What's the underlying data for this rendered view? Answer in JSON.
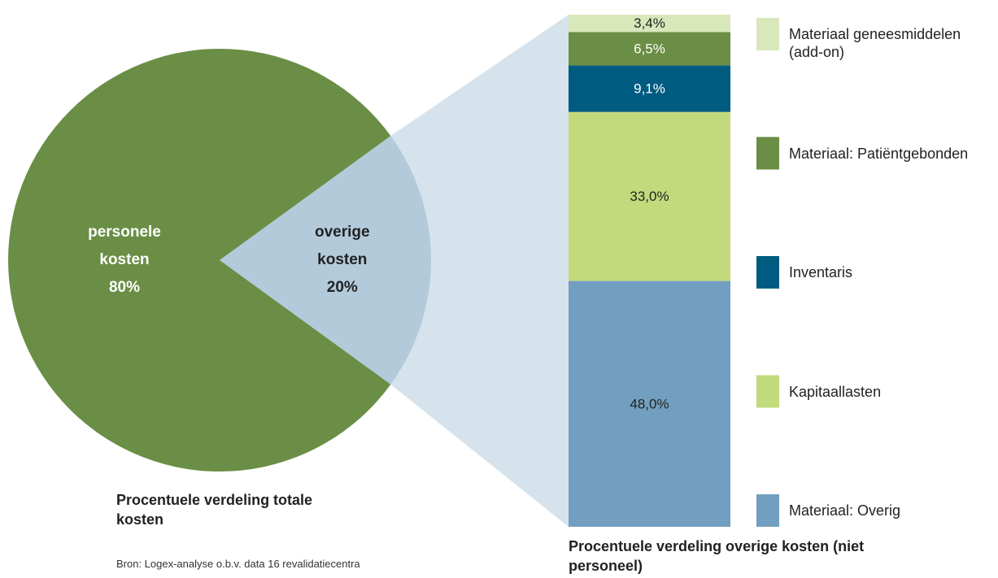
{
  "chart_data": [
    {
      "type": "pie",
      "title": "Procentuele verdeling totale kosten",
      "categories": [
        "personele kosten",
        "overige kosten"
      ],
      "values": [
        80,
        20
      ],
      "value_labels": [
        "80%",
        "20%"
      ],
      "colors": [
        "#6a8e45",
        "#b3cadb"
      ],
      "label_colors": [
        "#ffffff",
        "#222222"
      ],
      "note": "Bron: Logex-analyse o.b.v. data 16 revalidatiecentra"
    },
    {
      "type": "stacked-bar",
      "title": "Procentuele verdeling overige kosten (niet personeel)",
      "series": [
        {
          "name": "Materiaal: Overig",
          "color": "#729fbf",
          "values": [
            48.0
          ],
          "value_labels": [
            "48,0%"
          ]
        },
        {
          "name": "Kapitaallasten",
          "color": "#c2da7c",
          "values": [
            33.0
          ],
          "value_labels": [
            "33,0%"
          ]
        },
        {
          "name": "Inventaris",
          "color": "#005b80",
          "values": [
            9.1
          ],
          "value_labels": [
            "9,1%"
          ]
        },
        {
          "name": "Materiaal: Patiëntgebonden",
          "color": "#6a8e45",
          "values": [
            6.5
          ],
          "value_labels": [
            "6,5%"
          ]
        },
        {
          "name": "Materiaal geneesmiddelen (add-on)",
          "color": "#d9e8bb",
          "values": [
            3.4
          ],
          "value_labels": [
            "3,4%"
          ]
        }
      ],
      "ylim": [
        0,
        100
      ]
    }
  ]
}
